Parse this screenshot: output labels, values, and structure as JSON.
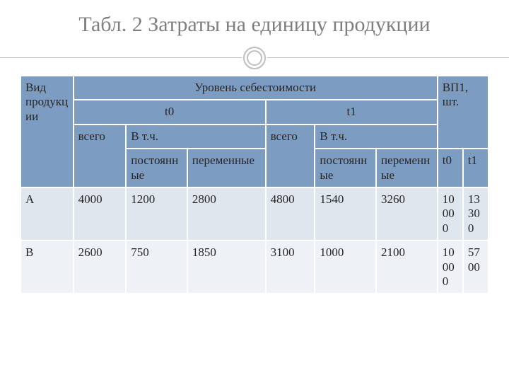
{
  "title": "Табл. 2  Затраты на единицу продукции",
  "table": {
    "headers": {
      "kind": "Вид продукции",
      "level": "Уровень себестоимости",
      "vp": "ВП1, шт.",
      "t0": "t0",
      "t1": "t1",
      "total": "всего",
      "incl": "В т.ч.",
      "fixed": "постоянные",
      "variable0": "переменные",
      "variable1": "переменные"
    },
    "rows": [
      {
        "name": "А",
        "t0_total": "4000",
        "t0_fixed": "1200",
        "t0_var": "2800",
        "t1_total": "4800",
        "t1_fixed": "1540",
        "t1_var": "3260",
        "vp_t0": "10000",
        "vp_t1": "13300"
      },
      {
        "name": "В",
        "t0_total": "2600",
        "t0_fixed": "750",
        "t0_var": "1850",
        "t1_total": "3100",
        "t1_fixed": "1000",
        "t1_var": "2100",
        "vp_t0": " 10000",
        "vp_t1": "5700"
      }
    ]
  },
  "colors": {
    "title": "#7f7f7f",
    "header_bg": "#7d9cc1",
    "row_even": "#e0e6ee",
    "row_odd": "#eef2f6",
    "border": "#ffffff",
    "rule": "#bfbfbf"
  }
}
